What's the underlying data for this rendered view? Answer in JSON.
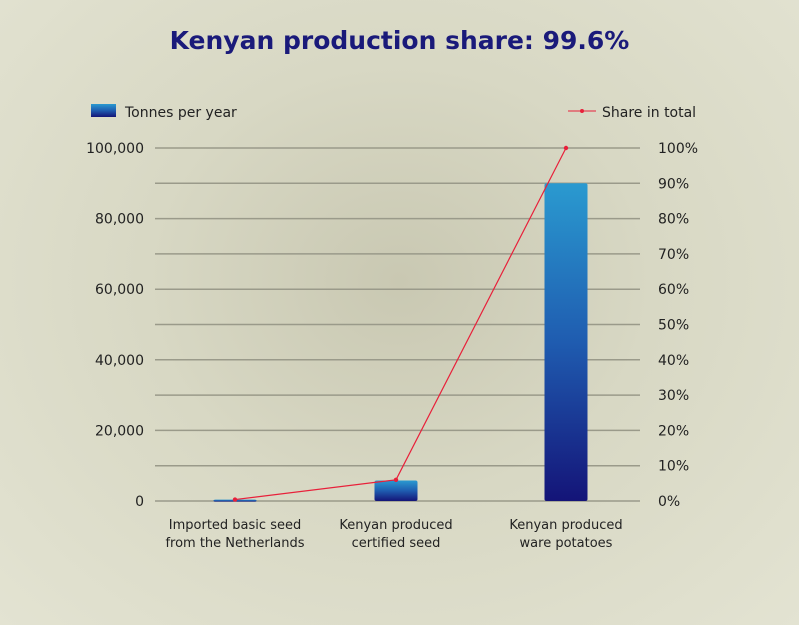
{
  "chart_data": {
    "type": "bar",
    "title": "Kenyan production share: 99.6%",
    "categories": [
      [
        "Imported basic seed",
        "from the Netherlands"
      ],
      [
        "Kenyan produced",
        "certified seed"
      ],
      [
        "Kenyan produced",
        "ware potatoes"
      ]
    ],
    "series": [
      {
        "name": "Tonnes per year",
        "type": "bar",
        "axis": "left",
        "values": [
          400,
          5800,
          90000
        ],
        "color": "#1a2a8a",
        "color_top": "#2a9ad0"
      },
      {
        "name": "Share in total",
        "type": "line",
        "axis": "right",
        "values": [
          0.4,
          6,
          100
        ],
        "color": "#e8203a"
      }
    ],
    "y_left": {
      "range": [
        0,
        100000
      ],
      "ticks": [
        "0",
        "20,000",
        "40,000",
        "60,000",
        "80,000",
        "100,000"
      ]
    },
    "y_right": {
      "range": [
        0,
        100
      ],
      "ticks": [
        "0%",
        "10%",
        "20%",
        "30%",
        "40%",
        "50%",
        "60%",
        "70%",
        "80%",
        "90%",
        "100%"
      ]
    },
    "grid": true,
    "legend": [
      "top-left",
      "top-right"
    ]
  }
}
